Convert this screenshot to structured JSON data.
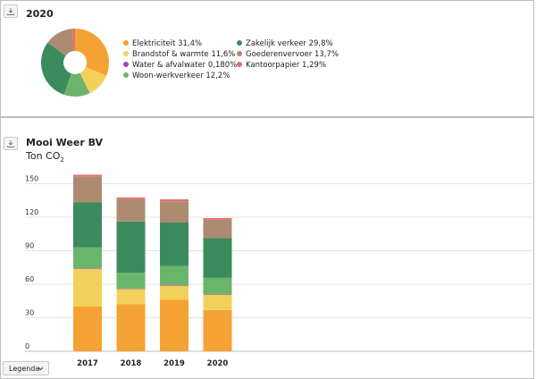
{
  "pie_panel": {
    "title": "2020"
  },
  "bar_panel": {
    "title": "Mooi Weer BV",
    "subtitle_main": "Ton CO",
    "subtitle_sub": "2"
  },
  "legend_button": {
    "label": "Legenda"
  },
  "icons": {
    "download": "download-icon",
    "chevron": "chevron-down-icon"
  },
  "chart_data": [
    {
      "type": "pie",
      "title": "2020",
      "slices": [
        {
          "label": "Elektriciteit 31,4%",
          "value": 31.4,
          "color": "#f5a234"
        },
        {
          "label": "Brandstof & warmte 11,6%",
          "value": 11.6,
          "color": "#f3cf5b"
        },
        {
          "label": "Water & afvalwater 0,180%",
          "value": 0.18,
          "color": "#9a4fa6"
        },
        {
          "label": "Woon-werkverkeer 12,2%",
          "value": 12.2,
          "color": "#6ab56b"
        },
        {
          "label": "Zakelijk verkeer 29,8%",
          "value": 29.8,
          "color": "#3a8c5c"
        },
        {
          "label": "Goederenvervoer 13,7%",
          "value": 13.7,
          "color": "#ad8b73"
        },
        {
          "label": "Kantoorpapier 1,29%",
          "value": 1.29,
          "color": "#e46e6e"
        }
      ]
    },
    {
      "type": "bar",
      "stacked": true,
      "title": "Mooi Weer BV",
      "ylabel": "Ton CO2",
      "categories": [
        "2017",
        "2018",
        "2019",
        "2020"
      ],
      "ylim": [
        0,
        165
      ],
      "yticks": [
        0,
        30,
        60,
        90,
        120,
        150
      ],
      "grid": true,
      "series": [
        {
          "name": "Elektriciteit",
          "color": "#f5a234",
          "values": [
            40,
            42,
            46,
            37
          ]
        },
        {
          "name": "Brandstof & warmte",
          "color": "#f3cf5b",
          "values": [
            34,
            14,
            13,
            14
          ]
        },
        {
          "name": "Water & afvalwater",
          "color": "#9a4fa6",
          "values": [
            0.2,
            0.2,
            0.2,
            0.2
          ]
        },
        {
          "name": "Woon-werkverkeer",
          "color": "#6ab56b",
          "values": [
            19,
            14,
            17,
            14.5
          ]
        },
        {
          "name": "Zakelijk verkeer",
          "color": "#3a8c5c",
          "values": [
            40,
            46,
            39,
            35.5
          ]
        },
        {
          "name": "Goederenvervoer",
          "color": "#ad8b73",
          "values": [
            23,
            20,
            19,
            16.5
          ]
        },
        {
          "name": "Kantoorpapier",
          "color": "#e46e6e",
          "values": [
            1.8,
            1.5,
            1.8,
            1.5
          ]
        }
      ]
    }
  ]
}
